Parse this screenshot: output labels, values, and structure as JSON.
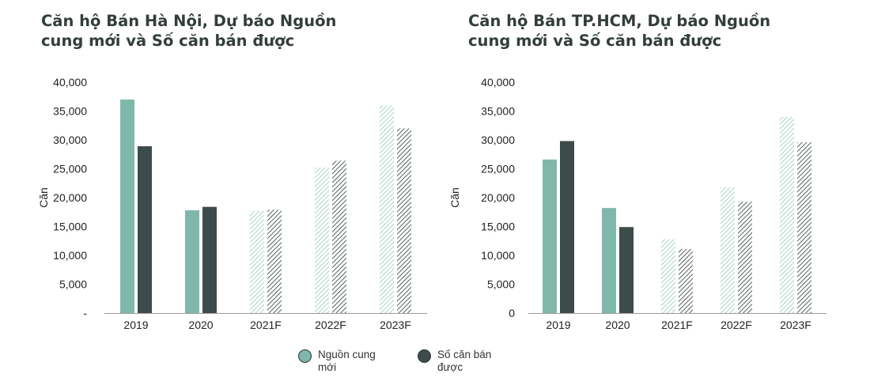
{
  "colors": {
    "supply": "#7fb8aa",
    "sold": "#3d4b4b",
    "hatch_supply": "#a8d4c9",
    "hatch_sold": "#556262"
  },
  "legend": [
    {
      "label": "Nguồn cung mới",
      "color": "#7fb8aa"
    },
    {
      "label": "Số căn bán được",
      "color": "#3d4b4b"
    }
  ],
  "chart_data": [
    {
      "type": "bar",
      "title": "Căn hộ Bán Hà Nội, Dự báo Nguồn cung mới và Số căn bán được",
      "ylabel": "Căn",
      "categories": [
        "2019",
        "2020",
        "2021F",
        "2022F",
        "2023F"
      ],
      "forecast_categories": [
        "2021F",
        "2022F",
        "2023F"
      ],
      "yticks": [
        "-",
        "5,000",
        "10,000",
        "15,000",
        "20,000",
        "25,000",
        "30,000",
        "35,000",
        "40,000"
      ],
      "ylim": [
        0,
        40000
      ],
      "series": [
        {
          "name": "Nguồn cung mới",
          "values": [
            37000,
            17800,
            17700,
            25200,
            36000
          ]
        },
        {
          "name": "Số căn bán được",
          "values": [
            28900,
            18400,
            17900,
            26400,
            32000
          ]
        }
      ]
    },
    {
      "type": "bar",
      "title": "Căn hộ Bán TP.HCM, Dự báo Nguồn cung mới và Số căn bán được",
      "ylabel": "Căn",
      "categories": [
        "2019",
        "2020",
        "2021F",
        "2022F",
        "2023F"
      ],
      "forecast_categories": [
        "2021F",
        "2022F",
        "2023F"
      ],
      "yticks": [
        "0",
        "5,000",
        "10,000",
        "15,000",
        "20,000",
        "25,000",
        "30,000",
        "35,000",
        "40,000"
      ],
      "ylim": [
        0,
        40000
      ],
      "series": [
        {
          "name": "Nguồn cung mới",
          "values": [
            26600,
            18200,
            12800,
            21800,
            34000
          ]
        },
        {
          "name": "Số căn bán được",
          "values": [
            29800,
            14900,
            11100,
            19300,
            29600
          ]
        }
      ]
    }
  ]
}
